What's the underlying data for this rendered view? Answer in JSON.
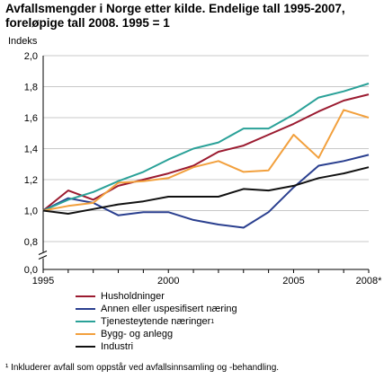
{
  "title_lines": [
    "Avfallsmengder i Norge etter kilde. Endelige tall 1995-2007,",
    "foreløpige tall 2008. 1995 = 1"
  ],
  "footnote": "¹ Inkluderer avfall som oppstår ved avfallsinnsamling og -behandling.",
  "chart_data": {
    "type": "line",
    "ylabel": "Indeks",
    "ylim": [
      0,
      2.0
    ],
    "y_ticks": [
      "0,0",
      "0,8",
      "1,0",
      "1,2",
      "1,4",
      "1,6",
      "1,8",
      "2,0"
    ],
    "y_tick_values": [
      0,
      0.8,
      1.0,
      1.2,
      1.4,
      1.6,
      1.8,
      2.0
    ],
    "axis_break": true,
    "x": [
      1995,
      1996,
      1997,
      1998,
      1999,
      2000,
      2001,
      2002,
      2003,
      2004,
      2005,
      2006,
      2007,
      2008
    ],
    "x_tick_labels": [
      "1995",
      "2000",
      "2005",
      "2008*"
    ],
    "x_tick_values": [
      1995,
      2000,
      2005,
      2008
    ],
    "grid": true,
    "series": [
      {
        "name": "Husholdninger",
        "color": "#9b1b30",
        "sup": "",
        "values": [
          1.0,
          1.13,
          1.07,
          1.16,
          1.2,
          1.24,
          1.29,
          1.38,
          1.42,
          1.49,
          1.56,
          1.64,
          1.71,
          1.75
        ]
      },
      {
        "name": "Annen eller uspesifisert næring",
        "color": "#2a3f8f",
        "sup": "",
        "values": [
          1.0,
          1.08,
          1.05,
          0.97,
          0.99,
          0.99,
          0.94,
          0.91,
          0.89,
          0.99,
          1.15,
          1.29,
          1.32,
          1.36
        ]
      },
      {
        "name": "Tjenesteytende næringer",
        "color": "#2aa198",
        "sup": "1",
        "values": [
          1.0,
          1.07,
          1.12,
          1.19,
          1.25,
          1.33,
          1.4,
          1.44,
          1.53,
          1.53,
          1.62,
          1.73,
          1.77,
          1.82
        ]
      },
      {
        "name": "Bygg- og anlegg",
        "color": "#f2a03d",
        "sup": "",
        "values": [
          1.0,
          1.03,
          1.05,
          1.18,
          1.19,
          1.21,
          1.28,
          1.32,
          1.25,
          1.26,
          1.49,
          1.34,
          1.65,
          1.6
        ]
      },
      {
        "name": "Industri",
        "color": "#111111",
        "sup": "",
        "values": [
          1.0,
          0.98,
          1.01,
          1.04,
          1.06,
          1.09,
          1.09,
          1.09,
          1.14,
          1.13,
          1.16,
          1.21,
          1.24,
          1.28
        ]
      }
    ]
  }
}
